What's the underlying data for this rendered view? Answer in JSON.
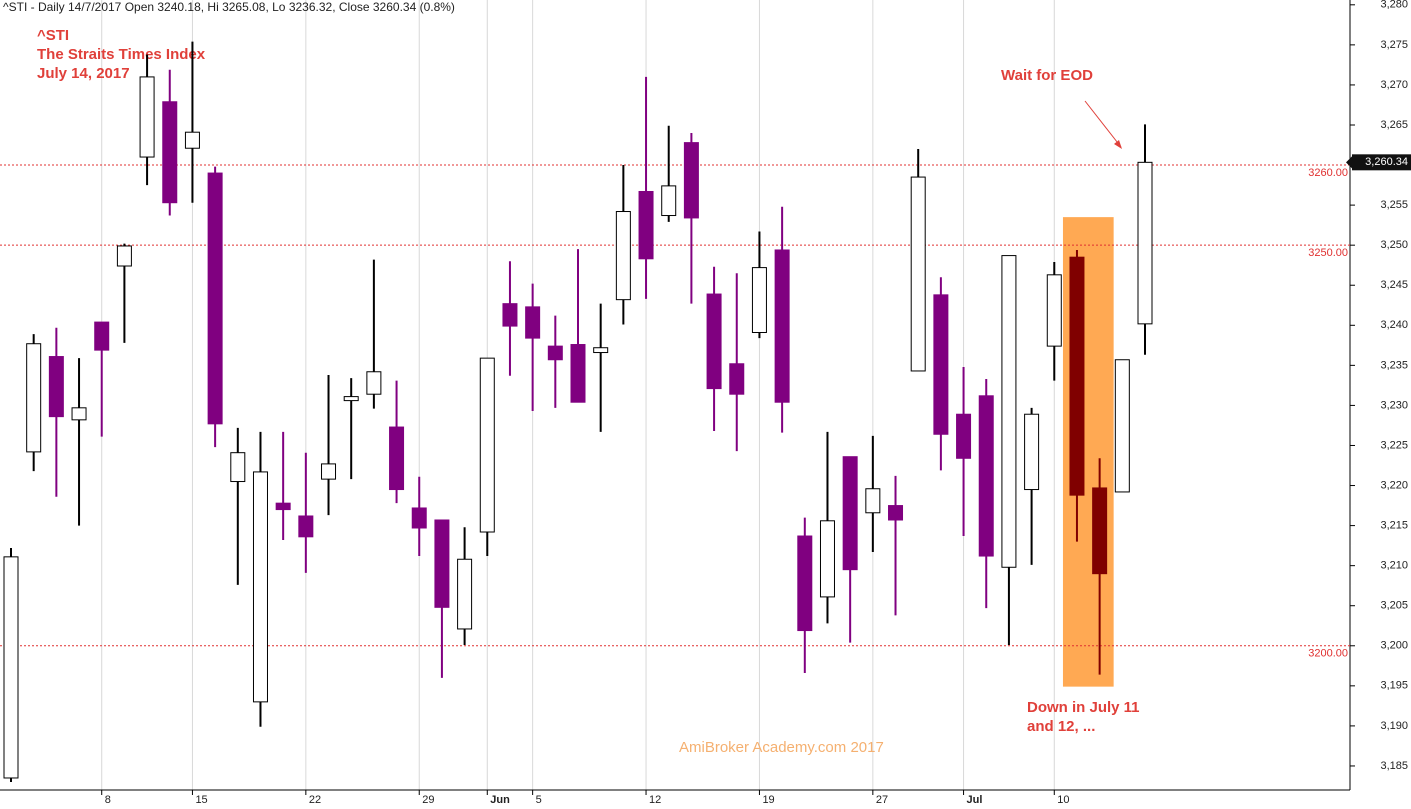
{
  "chart_data": {
    "type": "candlestick",
    "header": "^STI - Daily 14/7/2017 Open 3240.18, Hi 3265.08, Lo 3236.32, Close 3260.34 (0.8%)",
    "title_lines": [
      "^STI",
      "The Straits Times Index",
      "July 14, 2017"
    ],
    "annotations": {
      "wait": "Wait for EOD",
      "down": [
        "Down in July 11",
        "and 12, ..."
      ],
      "watermark": "AmiBroker Academy.com  2017"
    },
    "categories": [
      null,
      null,
      null,
      null,
      "8",
      null,
      null,
      null,
      "15",
      null,
      null,
      null,
      null,
      "22",
      null,
      null,
      null,
      null,
      "29",
      null,
      null,
      "Jun",
      null,
      "5",
      null,
      null,
      null,
      null,
      "12",
      null,
      null,
      null,
      null,
      "19",
      null,
      null,
      null,
      null,
      "27",
      null,
      null,
      null,
      "Jul",
      null,
      null,
      null,
      "10",
      null,
      null,
      null,
      null
    ],
    "open": [
      3183.5,
      3224.2,
      3236.1,
      3228.2,
      3240.4,
      3247.4,
      3261.0,
      3267.9,
      3262.1,
      3259.0,
      3220.5,
      3193.0,
      3217.8,
      3216.2,
      3220.8,
      3230.6,
      3231.4,
      3227.3,
      3217.2,
      3215.7,
      3202.1,
      3214.2,
      3242.7,
      3242.3,
      3237.4,
      3237.6,
      3236.6,
      3243.2,
      3256.7,
      3253.7,
      3262.8,
      3243.9,
      3235.2,
      3239.1,
      3249.4,
      3213.7,
      3206.1,
      3223.6,
      3216.6,
      3217.5,
      3234.3,
      3243.8,
      3228.9,
      3231.2,
      3209.8,
      3219.5,
      3237.4,
      3248.5,
      3219.7,
      3219.2,
      3240.18
    ],
    "high": [
      3212.2,
      3238.9,
      3239.7,
      3235.9,
      3240.4,
      3250.2,
      3273.8,
      3271.9,
      3275.4,
      3259.8,
      3227.2,
      3226.7,
      3226.7,
      3224.1,
      3233.8,
      3233.4,
      3248.2,
      3233.1,
      3221.1,
      3215.7,
      3214.8,
      3235.9,
      3248.0,
      3245.2,
      3241.2,
      3249.5,
      3242.7,
      3260.0,
      3271.0,
      3264.9,
      3264.0,
      3247.3,
      3246.5,
      3251.7,
      3254.8,
      3216.0,
      3226.7,
      3223.6,
      3226.2,
      3221.2,
      3262.0,
      3246.0,
      3234.8,
      3233.3,
      3248.7,
      3229.7,
      3247.9,
      3249.4,
      3223.4,
      3235.7,
      3265.08
    ],
    "low": [
      3183.0,
      3221.8,
      3218.6,
      3215.0,
      3226.1,
      3237.8,
      3257.5,
      3253.7,
      3255.3,
      3224.8,
      3207.6,
      3189.9,
      3213.2,
      3209.1,
      3216.3,
      3220.8,
      3229.6,
      3217.8,
      3211.2,
      3196.0,
      3200.1,
      3211.2,
      3233.7,
      3229.3,
      3229.7,
      3230.4,
      3226.7,
      3240.1,
      3243.3,
      3252.9,
      3242.7,
      3226.8,
      3224.3,
      3238.4,
      3226.6,
      3196.6,
      3202.8,
      3200.4,
      3211.7,
      3203.8,
      3234.3,
      3221.9,
      3213.7,
      3204.7,
      3200.1,
      3210.1,
      3233.1,
      3213.0,
      3196.4,
      3219.2,
      3236.32
    ],
    "close": [
      3211.1,
      3237.7,
      3228.6,
      3229.7,
      3236.9,
      3249.9,
      3271.0,
      3255.3,
      3264.1,
      3227.7,
      3224.1,
      3221.7,
      3217.0,
      3213.6,
      3222.7,
      3231.1,
      3234.2,
      3219.5,
      3214.7,
      3204.8,
      3210.8,
      3235.9,
      3239.9,
      3238.4,
      3235.7,
      3230.4,
      3237.2,
      3254.2,
      3248.3,
      3257.4,
      3253.4,
      3232.1,
      3231.4,
      3247.2,
      3230.4,
      3201.9,
      3215.6,
      3209.5,
      3219.6,
      3215.7,
      3258.5,
      3226.4,
      3223.4,
      3211.2,
      3248.7,
      3228.9,
      3246.3,
      3218.8,
      3209.0,
      3235.7,
      3260.34
    ],
    "up_color": "#ffffff",
    "down_color": "#800080",
    "highlight": {
      "span": [
        47,
        48
      ],
      "ylim": [
        3194.9,
        3253.5
      ],
      "color": "#ffa040",
      "candle_color": "#800000"
    },
    "hlines": [
      {
        "value": 3260,
        "label": "3260.00"
      },
      {
        "value": 3250,
        "label": "3250.00"
      },
      {
        "value": 3200,
        "label": "3200.00"
      }
    ],
    "last_price": {
      "value": 3260.34,
      "label": "3,260.34"
    },
    "ylim": [
      3182.0,
      3280.6
    ],
    "yticks": [
      {
        "value": 3185,
        "label": "3,185"
      },
      {
        "value": 3190,
        "label": "3,190"
      },
      {
        "value": 3195,
        "label": "3,195"
      },
      {
        "value": 3200,
        "label": "3,200"
      },
      {
        "value": 3205,
        "label": "3,205"
      },
      {
        "value": 3210,
        "label": "3,210"
      },
      {
        "value": 3215,
        "label": "3,215"
      },
      {
        "value": 3220,
        "label": "3,220"
      },
      {
        "value": 3225,
        "label": "3,225"
      },
      {
        "value": 3230,
        "label": "3,230"
      },
      {
        "value": 3235,
        "label": "3,235"
      },
      {
        "value": 3240,
        "label": "3,240"
      },
      {
        "value": 3245,
        "label": "3,245"
      },
      {
        "value": 3250,
        "label": "3,250"
      },
      {
        "value": 3255,
        "label": "3,255"
      },
      {
        "value": 3260,
        "label": "3,260"
      },
      {
        "value": 3265,
        "label": "3,265"
      },
      {
        "value": 3270,
        "label": "3,270"
      },
      {
        "value": 3275,
        "label": "3,275"
      },
      {
        "value": 3280,
        "label": "3,280"
      }
    ],
    "grid": true
  }
}
